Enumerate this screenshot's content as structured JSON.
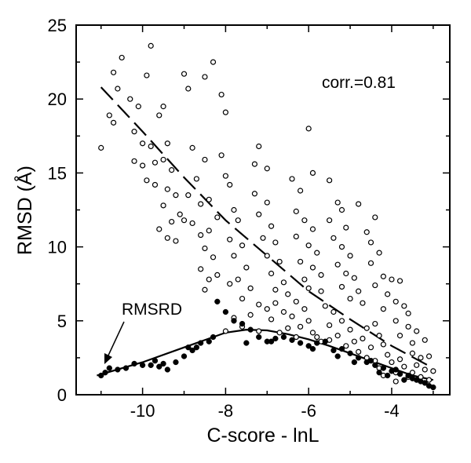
{
  "chart_data": {
    "type": "scatter",
    "xlabel": "C-score - lnL",
    "ylabel": "RMSD (Å)",
    "xlim": [
      -11.6,
      -2.6
    ],
    "ylim": [
      0,
      25
    ],
    "x_ticks": [
      "-10",
      "-8",
      "-6",
      "-4"
    ],
    "y_ticks": [
      "0",
      "5",
      "10",
      "15",
      "20",
      "25"
    ],
    "grid": false,
    "annotations": {
      "corr": "corr.=0.81",
      "rmsrd": "RMSRD"
    },
    "series": [
      {
        "marker": "open-circle",
        "points": [
          [
            -10.7,
            21.8
          ],
          [
            -10.5,
            22.8
          ],
          [
            -10.6,
            20.7
          ],
          [
            -10.8,
            18.9
          ],
          [
            -10.7,
            18.4
          ],
          [
            -11.0,
            16.7
          ],
          [
            -10.3,
            20.0
          ],
          [
            -10.1,
            19.5
          ],
          [
            -9.9,
            21.6
          ],
          [
            -9.8,
            23.6
          ],
          [
            -9.5,
            19.5
          ],
          [
            -9.6,
            18.9
          ],
          [
            -10.2,
            17.8
          ],
          [
            -10.0,
            17.0
          ],
          [
            -9.8,
            16.8
          ],
          [
            -10.2,
            15.8
          ],
          [
            -10.0,
            15.5
          ],
          [
            -9.7,
            15.7
          ],
          [
            -9.4,
            17.0
          ],
          [
            -9.5,
            15.9
          ],
          [
            -9.3,
            15.2
          ],
          [
            -9.7,
            14.2
          ],
          [
            -9.9,
            14.5
          ],
          [
            -9.4,
            13.9
          ],
          [
            -9.2,
            13.5
          ],
          [
            -9.5,
            12.8
          ],
          [
            -9.1,
            12.2
          ],
          [
            -9.3,
            11.7
          ],
          [
            -9.6,
            11.2
          ],
          [
            -9.0,
            11.8
          ],
          [
            -9.4,
            10.6
          ],
          [
            -9.2,
            10.4
          ],
          [
            -9.0,
            21.7
          ],
          [
            -8.9,
            20.7
          ],
          [
            -8.5,
            21.5
          ],
          [
            -8.3,
            22.5
          ],
          [
            -8.1,
            20.3
          ],
          [
            -8.0,
            19.1
          ],
          [
            -8.8,
            16.7
          ],
          [
            -8.5,
            15.9
          ],
          [
            -8.7,
            14.6
          ],
          [
            -8.9,
            13.5
          ],
          [
            -8.6,
            12.9
          ],
          [
            -8.4,
            13.2
          ],
          [
            -8.8,
            11.6
          ],
          [
            -8.6,
            10.8
          ],
          [
            -8.4,
            11.1
          ],
          [
            -8.2,
            12.0
          ],
          [
            -8.5,
            9.9
          ],
          [
            -8.3,
            9.3
          ],
          [
            -8.6,
            8.5
          ],
          [
            -8.4,
            7.8
          ],
          [
            -8.5,
            7.1
          ],
          [
            -8.2,
            8.1
          ],
          [
            -8.1,
            16.2
          ],
          [
            -8.0,
            14.8
          ],
          [
            -7.9,
            14.2
          ],
          [
            -7.8,
            12.5
          ],
          [
            -7.7,
            11.8
          ],
          [
            -7.9,
            10.5
          ],
          [
            -7.6,
            10.1
          ],
          [
            -7.8,
            9.4
          ],
          [
            -7.5,
            8.6
          ],
          [
            -7.7,
            7.8
          ],
          [
            -7.4,
            7.2
          ],
          [
            -7.9,
            7.5
          ],
          [
            -7.3,
            15.6
          ],
          [
            -7.2,
            16.8
          ],
          [
            -7.0,
            15.3
          ],
          [
            -7.3,
            13.6
          ],
          [
            -7.0,
            13.0
          ],
          [
            -7.2,
            12.2
          ],
          [
            -6.9,
            11.4
          ],
          [
            -7.1,
            10.6
          ],
          [
            -6.8,
            10.3
          ],
          [
            -7.0,
            9.4
          ],
          [
            -6.7,
            9.0
          ],
          [
            -6.9,
            8.2
          ],
          [
            -6.6,
            7.6
          ],
          [
            -6.8,
            7.1
          ],
          [
            -6.5,
            6.8
          ],
          [
            -6.4,
            14.6
          ],
          [
            -6.2,
            13.8
          ],
          [
            -6.0,
            18.0
          ],
          [
            -5.9,
            15.0
          ],
          [
            -6.3,
            12.4
          ],
          [
            -6.1,
            11.8
          ],
          [
            -5.9,
            11.2
          ],
          [
            -6.3,
            10.7
          ],
          [
            -6.0,
            10.1
          ],
          [
            -5.8,
            9.6
          ],
          [
            -6.2,
            9.0
          ],
          [
            -5.9,
            8.6
          ],
          [
            -6.1,
            7.8
          ],
          [
            -5.7,
            8.1
          ],
          [
            -6.0,
            7.2
          ],
          [
            -5.7,
            7.0
          ],
          [
            -5.5,
            14.5
          ],
          [
            -5.3,
            13.0
          ],
          [
            -5.2,
            12.5
          ],
          [
            -5.5,
            11.8
          ],
          [
            -5.1,
            11.3
          ],
          [
            -5.4,
            10.6
          ],
          [
            -5.2,
            10.0
          ],
          [
            -5.0,
            9.4
          ],
          [
            -5.3,
            8.8
          ],
          [
            -5.1,
            8.2
          ],
          [
            -4.9,
            7.9
          ],
          [
            -5.2,
            7.3
          ],
          [
            -4.8,
            7.0
          ],
          [
            -5.0,
            6.5
          ],
          [
            -4.7,
            6.2
          ],
          [
            -4.8,
            12.9
          ],
          [
            -4.6,
            11.0
          ],
          [
            -4.4,
            12.0
          ],
          [
            -4.5,
            10.3
          ],
          [
            -4.3,
            9.6
          ],
          [
            -4.5,
            8.9
          ],
          [
            -4.2,
            8.0
          ],
          [
            -4.4,
            7.4
          ],
          [
            -4.0,
            7.8
          ],
          [
            -3.8,
            7.7
          ],
          [
            -4.1,
            6.8
          ],
          [
            -3.9,
            6.3
          ],
          [
            -3.7,
            6.0
          ],
          [
            -3.6,
            5.5
          ],
          [
            -4.2,
            5.8
          ],
          [
            -3.9,
            5.0
          ],
          [
            -3.6,
            4.6
          ],
          [
            -3.4,
            4.3
          ],
          [
            -3.8,
            4.0
          ],
          [
            -3.5,
            3.5
          ],
          [
            -3.2,
            3.7
          ],
          [
            -3.5,
            2.8
          ],
          [
            -3.3,
            2.5
          ],
          [
            -3.1,
            2.6
          ],
          [
            -3.4,
            2.0
          ],
          [
            -3.2,
            1.7
          ],
          [
            -3.0,
            1.6
          ],
          [
            -3.3,
            1.2
          ],
          [
            -3.1,
            1.0
          ],
          [
            -4.6,
            4.5
          ],
          [
            -4.4,
            4.8
          ],
          [
            -4.3,
            4.0
          ],
          [
            -4.7,
            3.8
          ],
          [
            -4.5,
            3.2
          ],
          [
            -4.2,
            3.4
          ],
          [
            -4.1,
            2.7
          ],
          [
            -4.6,
            2.5
          ],
          [
            -4.0,
            2.2
          ],
          [
            -3.8,
            2.4
          ],
          [
            -3.7,
            1.9
          ],
          [
            -3.9,
            1.5
          ],
          [
            -3.6,
            1.2
          ],
          [
            -4.3,
            1.8
          ],
          [
            -5.6,
            6.0
          ],
          [
            -5.4,
            5.6
          ],
          [
            -5.2,
            5.0
          ],
          [
            -5.5,
            4.7
          ],
          [
            -5.0,
            4.4
          ],
          [
            -5.3,
            4.0
          ],
          [
            -4.9,
            3.6
          ],
          [
            -5.1,
            3.3
          ],
          [
            -4.8,
            2.9
          ],
          [
            -5.7,
            3.6
          ],
          [
            -6.3,
            6.3
          ],
          [
            -6.1,
            5.8
          ],
          [
            -6.4,
            5.3
          ],
          [
            -6.0,
            5.0
          ],
          [
            -6.2,
            4.6
          ],
          [
            -5.9,
            4.2
          ],
          [
            -6.5,
            4.5
          ],
          [
            -6.8,
            6.2
          ],
          [
            -6.6,
            5.6
          ],
          [
            -7.0,
            5.8
          ],
          [
            -6.9,
            5.1
          ],
          [
            -7.2,
            6.1
          ],
          [
            -7.4,
            5.4
          ],
          [
            -7.6,
            6.5
          ],
          [
            -7.8,
            5.2
          ],
          [
            -8.0,
            4.3
          ],
          [
            -7.6,
            4.6
          ],
          [
            -7.2,
            4.3
          ],
          [
            -6.7,
            4.2
          ],
          [
            -6.3,
            3.9
          ],
          [
            -5.8,
            3.9
          ],
          [
            -5.5,
            3.7
          ],
          [
            -4.4,
            2.3
          ],
          [
            -4.2,
            1.3
          ],
          [
            -3.9,
            0.9
          ],
          [
            -3.5,
            1.5
          ]
        ]
      },
      {
        "marker": "filled-circle",
        "points": [
          [
            -11.0,
            1.3
          ],
          [
            -10.8,
            1.8
          ],
          [
            -10.6,
            1.7
          ],
          [
            -10.4,
            1.8
          ],
          [
            -10.2,
            2.1
          ],
          [
            -10.0,
            2.0
          ],
          [
            -9.8,
            2.0
          ],
          [
            -9.6,
            1.9
          ],
          [
            -9.4,
            1.7
          ],
          [
            -9.2,
            2.2
          ],
          [
            -9.0,
            2.6
          ],
          [
            -8.8,
            3.0
          ],
          [
            -8.6,
            3.5
          ],
          [
            -8.4,
            3.6
          ],
          [
            -8.3,
            3.9
          ],
          [
            -8.2,
            6.3
          ],
          [
            -8.0,
            5.6
          ],
          [
            -7.8,
            5.0
          ],
          [
            -7.6,
            4.8
          ],
          [
            -7.4,
            4.4
          ],
          [
            -7.2,
            3.9
          ],
          [
            -7.0,
            3.6
          ],
          [
            -6.8,
            3.8
          ],
          [
            -6.6,
            3.9
          ],
          [
            -6.4,
            3.7
          ],
          [
            -6.2,
            3.5
          ],
          [
            -6.0,
            3.3
          ],
          [
            -5.8,
            3.5
          ],
          [
            -5.6,
            3.6
          ],
          [
            -5.4,
            3.0
          ],
          [
            -5.2,
            3.1
          ],
          [
            -5.0,
            2.8
          ],
          [
            -4.8,
            2.5
          ],
          [
            -4.6,
            2.2
          ],
          [
            -4.5,
            2.3
          ],
          [
            -4.4,
            2.0
          ],
          [
            -4.2,
            1.8
          ],
          [
            -4.0,
            1.6
          ],
          [
            -3.9,
            1.7
          ],
          [
            -3.8,
            1.4
          ],
          [
            -3.6,
            1.3
          ],
          [
            -3.5,
            1.1
          ],
          [
            -3.4,
            1.0
          ],
          [
            -3.3,
            0.9
          ],
          [
            -3.2,
            0.8
          ],
          [
            -3.1,
            0.6
          ],
          [
            -3.0,
            0.5
          ],
          [
            -4.1,
            1.3
          ],
          [
            -4.3,
            1.5
          ],
          [
            -3.7,
            1.0
          ],
          [
            -6.9,
            3.6
          ],
          [
            -7.5,
            3.5
          ],
          [
            -5.9,
            3.1
          ],
          [
            -5.3,
            2.6
          ],
          [
            -4.9,
            2.2
          ],
          [
            -9.5,
            2.1
          ],
          [
            -9.7,
            2.3
          ],
          [
            -8.9,
            3.2
          ],
          [
            -8.7,
            3.2
          ],
          [
            -10.9,
            1.5
          ]
        ]
      },
      {
        "style": "dashed-line",
        "points": [
          [
            -11.0,
            20.8
          ],
          [
            -10.0,
            17.8
          ],
          [
            -9.0,
            14.7
          ],
          [
            -8.0,
            11.8
          ],
          [
            -7.0,
            9.4
          ],
          [
            -6.0,
            7.0
          ],
          [
            -5.0,
            5.1
          ],
          [
            -4.0,
            3.3
          ],
          [
            -3.0,
            1.8
          ]
        ]
      },
      {
        "style": "solid-line",
        "points": [
          [
            -11.1,
            1.3
          ],
          [
            -10.0,
            2.2
          ],
          [
            -9.0,
            3.2
          ],
          [
            -8.0,
            4.2
          ],
          [
            -7.5,
            4.4
          ],
          [
            -7.0,
            4.35
          ],
          [
            -6.5,
            4.1
          ],
          [
            -6.0,
            3.75
          ],
          [
            -5.5,
            3.3
          ],
          [
            -5.0,
            2.8
          ],
          [
            -4.5,
            2.3
          ],
          [
            -4.0,
            1.8
          ],
          [
            -3.5,
            1.3
          ],
          [
            -3.0,
            1.0
          ]
        ]
      }
    ]
  }
}
